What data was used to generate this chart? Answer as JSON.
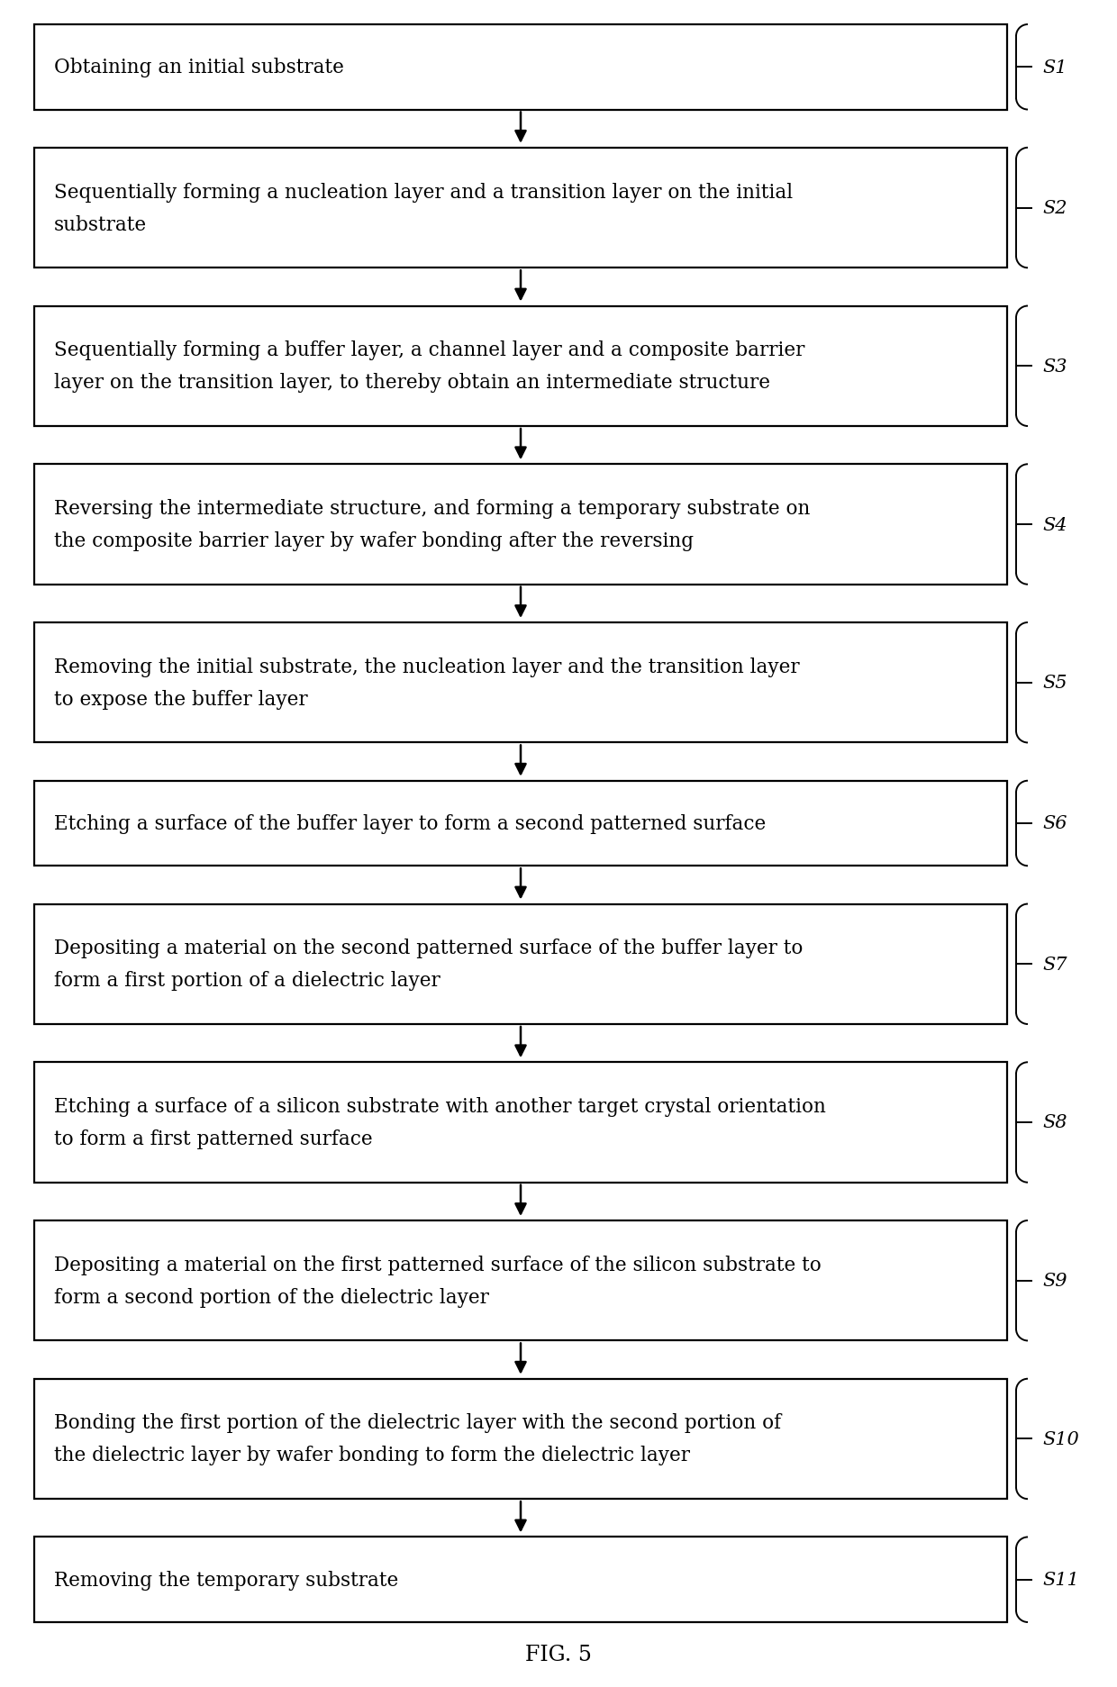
{
  "title": "FIG. 5",
  "steps": [
    {
      "id": "S1",
      "lines": [
        "Obtaining an initial substrate"
      ],
      "n_lines": 1
    },
    {
      "id": "S2",
      "lines": [
        "Sequentially forming a nucleation layer and a transition layer on the initial",
        "substrate"
      ],
      "n_lines": 2
    },
    {
      "id": "S3",
      "lines": [
        "Sequentially forming a buffer layer, a channel layer and a composite barrier",
        "layer on the transition layer, to thereby obtain an intermediate structure"
      ],
      "n_lines": 2
    },
    {
      "id": "S4",
      "lines": [
        "Reversing the intermediate structure, and forming a temporary substrate on",
        "the composite barrier layer by wafer bonding after the reversing"
      ],
      "n_lines": 2
    },
    {
      "id": "S5",
      "lines": [
        "Removing the initial substrate, the nucleation layer and the transition layer",
        "to expose the buffer layer"
      ],
      "n_lines": 2
    },
    {
      "id": "S6",
      "lines": [
        "Etching a surface of the buffer layer to form a second patterned surface"
      ],
      "n_lines": 1
    },
    {
      "id": "S7",
      "lines": [
        "Depositing a material on the second patterned surface of the buffer layer to",
        "form a first portion of a dielectric layer"
      ],
      "n_lines": 2
    },
    {
      "id": "S8",
      "lines": [
        "Etching a surface of a silicon substrate with another target crystal orientation",
        "to form a first patterned surface"
      ],
      "n_lines": 2
    },
    {
      "id": "S9",
      "lines": [
        "Depositing a material on the first patterned surface of the silicon substrate to",
        "form a second portion of the dielectric layer"
      ],
      "n_lines": 2
    },
    {
      "id": "S10",
      "lines": [
        "Bonding the first portion of the dielectric layer with the second portion of",
        "the dielectric layer by wafer bonding to form the dielectric layer"
      ],
      "n_lines": 2
    },
    {
      "id": "S11",
      "lines": [
        "Removing the temporary substrate"
      ],
      "n_lines": 1
    }
  ],
  "bg_color": "#ffffff",
  "box_facecolor": "#ffffff",
  "box_edgecolor": "#000000",
  "text_color": "#000000",
  "arrow_color": "#000000",
  "font_size": 15.5,
  "label_font_size": 15.0,
  "fig_caption_fontsize": 17
}
